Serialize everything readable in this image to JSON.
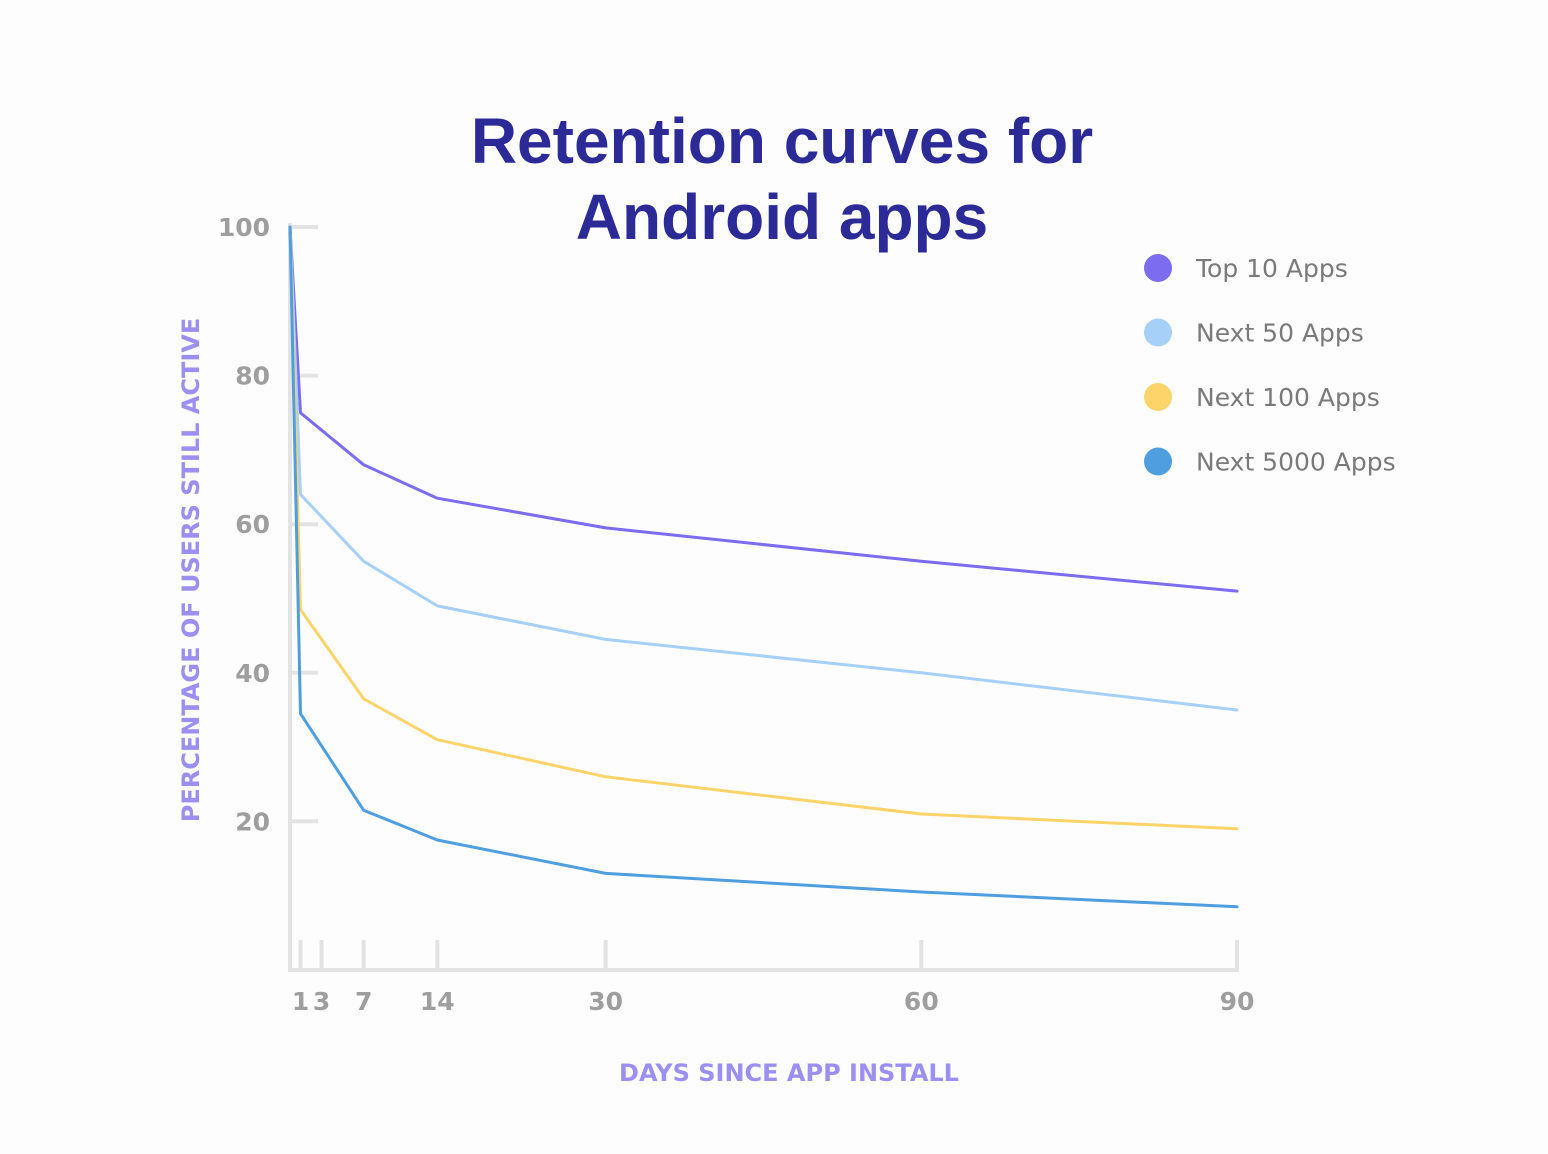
{
  "chart_data": {
    "type": "line",
    "title": [
      "Retention curves for",
      "Android apps"
    ],
    "xlabel": "DAYS SINCE APP INSTALL",
    "ylabel": "PERCENTAGE OF USERS STILL ACTIVE",
    "xlim": [
      0,
      90
    ],
    "ylim": [
      0,
      100
    ],
    "x_ticks": [
      1,
      3,
      7,
      14,
      30,
      60,
      90
    ],
    "y_ticks": [
      20,
      40,
      60,
      80,
      100
    ],
    "grid": false,
    "legend_position": "top-right",
    "series": [
      {
        "name": "Top 10 Apps",
        "color": "#7b6cf0",
        "points": [
          [
            0,
            100
          ],
          [
            1,
            75
          ],
          [
            7,
            68
          ],
          [
            14,
            63.5
          ],
          [
            30,
            59.5
          ],
          [
            60,
            55
          ],
          [
            90,
            51
          ]
        ]
      },
      {
        "name": "Next 50 Apps",
        "color": "#a6d0f7",
        "points": [
          [
            0,
            100
          ],
          [
            1,
            64
          ],
          [
            7,
            55
          ],
          [
            14,
            49
          ],
          [
            30,
            44.5
          ],
          [
            60,
            40
          ],
          [
            90,
            35
          ]
        ]
      },
      {
        "name": "Next 100 Apps",
        "color": "#fcd46a",
        "points": [
          [
            0,
            100
          ],
          [
            1,
            48.5
          ],
          [
            7,
            36.5
          ],
          [
            14,
            31
          ],
          [
            30,
            26
          ],
          [
            60,
            21
          ],
          [
            90,
            19
          ]
        ]
      },
      {
        "name": "Next 5000 Apps",
        "color": "#4f9ee0",
        "points": [
          [
            0,
            100
          ],
          [
            1,
            34.5
          ],
          [
            7,
            21.5
          ],
          [
            14,
            17.5
          ],
          [
            30,
            13
          ],
          [
            60,
            10.5
          ],
          [
            90,
            8.5
          ]
        ]
      }
    ]
  },
  "colors": {
    "title": "#2b2a96",
    "axis_label": "#9b8ff2",
    "tick_label": "#9e9e9e",
    "axis_line": "#e3e3e3"
  }
}
